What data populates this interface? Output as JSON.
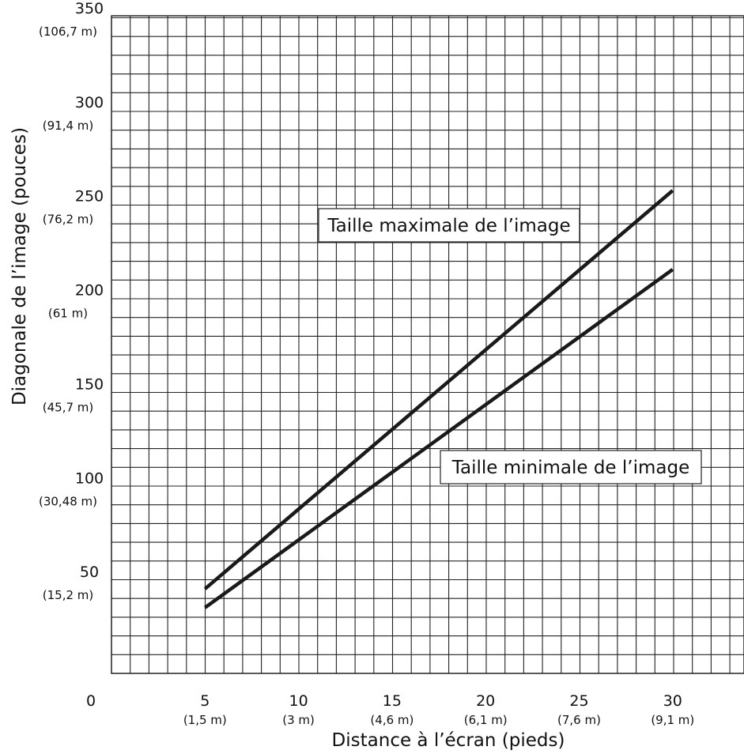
{
  "chart_data": {
    "type": "line",
    "xlabel": "Distance à l’écran (pieds)",
    "ylabel": "Diagonale de l’image (pouces)",
    "xlim": [
      0,
      33.3
    ],
    "ylim": [
      0,
      350
    ],
    "grid": true,
    "x_ticks": [
      {
        "value": 0,
        "label": "0",
        "sublabel": ""
      },
      {
        "value": 5,
        "label": "5",
        "sublabel": "(1,5 m)"
      },
      {
        "value": 10,
        "label": "10",
        "sublabel": "(3 m)"
      },
      {
        "value": 15,
        "label": "15",
        "sublabel": "(4,6 m)"
      },
      {
        "value": 20,
        "label": "20",
        "sublabel": "(6,1 m)"
      },
      {
        "value": 25,
        "label": "25",
        "sublabel": "(7,6 m)"
      },
      {
        "value": 30,
        "label": "30",
        "sublabel": "(9,1 m)"
      }
    ],
    "y_ticks": [
      {
        "value": 50,
        "label": "50",
        "sublabel": "(15,2 m)"
      },
      {
        "value": 100,
        "label": "100",
        "sublabel": "(30,48 m)"
      },
      {
        "value": 150,
        "label": "150",
        "sublabel": "(45,7 m)"
      },
      {
        "value": 200,
        "label": "200",
        "sublabel": "(61 m)"
      },
      {
        "value": 250,
        "label": "250",
        "sublabel": "(76,2 m)"
      },
      {
        "value": 300,
        "label": "300",
        "sublabel": "(91,4 m)"
      },
      {
        "value": 350,
        "label": "350",
        "sublabel": "(106,7 m)"
      }
    ],
    "series": [
      {
        "name": "Taille maximale de l’image",
        "x": [
          5,
          30
        ],
        "y": [
          45,
          257
        ],
        "color": "#1a1a1a"
      },
      {
        "name": "Taille minimale de l’image",
        "x": [
          5,
          30
        ],
        "y": [
          35,
          215
        ],
        "color": "#1a1a1a"
      }
    ]
  }
}
